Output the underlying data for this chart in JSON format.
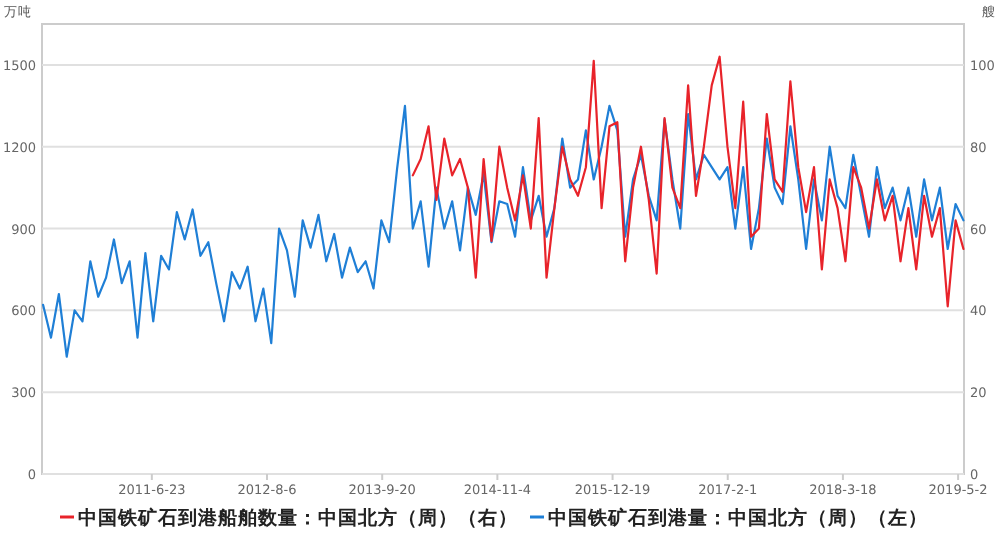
{
  "chart_data": {
    "type": "line",
    "ylabel": "万吨",
    "y2label": "艘",
    "xlim": [
      "2010-05-28",
      "2019-05-23"
    ],
    "xticks": [
      {
        "value": "2011-06-23",
        "label": "2011-6-23"
      },
      {
        "value": "2012-08-06",
        "label": "2012-8-6"
      },
      {
        "value": "2013-09-20",
        "label": "2013-9-20"
      },
      {
        "value": "2014-11-04",
        "label": "2014-11-4"
      },
      {
        "value": "2015-12-19",
        "label": "2015-12-19"
      },
      {
        "value": "2017-02-01",
        "label": "2017-2-1"
      },
      {
        "value": "2018-03-18",
        "label": "2018-3-18"
      },
      {
        "value": "2019-05-02",
        "label": "2019-5-2"
      }
    ],
    "ylim": [
      0,
      1650
    ],
    "yticks": [
      0,
      300,
      600,
      900,
      1200,
      1500
    ],
    "y2lim": [
      0,
      110
    ],
    "y2ticks": [
      0,
      20,
      40,
      60,
      80,
      100
    ],
    "grid": "y",
    "legend": "bottom",
    "marker": "none",
    "line_style": "solid",
    "series": [
      {
        "name": "中国铁矿石到港船舶数量：中国北方（周）（右）",
        "color": "#e8232a",
        "axis": "y2",
        "x": [
          "2014-01-07",
          "2014-02-04",
          "2014-03-04",
          "2014-04-01",
          "2014-04-29",
          "2014-05-27",
          "2014-06-24",
          "2014-07-22",
          "2014-08-19",
          "2014-09-16",
          "2014-10-14",
          "2014-11-11",
          "2014-12-09",
          "2015-01-06",
          "2015-02-03",
          "2015-03-03",
          "2015-03-31",
          "2015-04-28",
          "2015-05-26",
          "2015-06-23",
          "2015-07-21",
          "2015-08-18",
          "2015-09-15",
          "2015-10-13",
          "2015-11-10",
          "2015-12-08",
          "2016-01-05",
          "2016-02-02",
          "2016-03-01",
          "2016-03-29",
          "2016-04-26",
          "2016-05-24",
          "2016-06-21",
          "2016-07-19",
          "2016-08-16",
          "2016-09-13",
          "2016-10-11",
          "2016-11-08",
          "2016-12-06",
          "2017-01-03",
          "2017-01-31",
          "2017-02-28",
          "2017-03-28",
          "2017-04-25",
          "2017-05-23",
          "2017-06-20",
          "2017-07-18",
          "2017-08-15",
          "2017-09-12",
          "2017-10-10",
          "2017-11-07",
          "2017-12-05",
          "2018-01-02",
          "2018-01-30",
          "2018-02-27",
          "2018-03-27",
          "2018-04-24",
          "2018-05-22",
          "2018-06-19",
          "2018-07-17",
          "2018-08-14",
          "2018-09-11",
          "2018-10-09",
          "2018-11-06",
          "2018-12-04",
          "2019-01-01",
          "2019-01-29",
          "2019-02-26",
          "2019-03-26",
          "2019-04-23",
          "2019-05-21"
        ],
        "values": [
          73,
          77,
          85,
          67,
          82,
          73,
          77,
          70,
          48,
          77,
          57,
          80,
          70,
          62,
          73,
          60,
          87,
          48,
          65,
          80,
          72,
          68,
          75,
          101,
          65,
          85,
          86,
          52,
          70,
          80,
          67,
          49,
          87,
          70,
          65,
          95,
          68,
          80,
          95,
          102,
          80,
          65,
          91,
          58,
          60,
          88,
          72,
          69,
          96,
          75,
          64,
          75,
          50,
          72,
          65,
          52,
          75,
          70,
          60,
          72,
          62,
          68,
          52,
          65,
          50,
          68,
          58,
          65,
          41,
          62,
          55
        ]
      },
      {
        "name": "中国铁矿石到港量：中国北方（周）（左）",
        "color": "#1f7fd6",
        "axis": "y",
        "x": [
          "2010-06-01",
          "2010-06-29",
          "2010-07-27",
          "2010-08-24",
          "2010-09-21",
          "2010-10-19",
          "2010-11-16",
          "2010-12-14",
          "2011-01-11",
          "2011-02-08",
          "2011-03-08",
          "2011-04-05",
          "2011-05-03",
          "2011-05-31",
          "2011-06-28",
          "2011-07-26",
          "2011-08-23",
          "2011-09-20",
          "2011-10-18",
          "2011-11-15",
          "2011-12-13",
          "2012-01-10",
          "2012-02-07",
          "2012-03-06",
          "2012-04-03",
          "2012-05-01",
          "2012-05-29",
          "2012-06-26",
          "2012-07-24",
          "2012-08-21",
          "2012-09-18",
          "2012-10-16",
          "2012-11-13",
          "2012-12-11",
          "2013-01-08",
          "2013-02-05",
          "2013-03-05",
          "2013-04-02",
          "2013-04-30",
          "2013-05-28",
          "2013-06-25",
          "2013-07-23",
          "2013-08-20",
          "2013-09-17",
          "2013-10-15",
          "2013-11-12",
          "2013-12-10",
          "2014-01-07",
          "2014-02-04",
          "2014-03-04",
          "2014-04-01",
          "2014-04-29",
          "2014-05-27",
          "2014-06-24",
          "2014-07-22",
          "2014-08-19",
          "2014-09-16",
          "2014-10-14",
          "2014-11-11",
          "2014-12-09",
          "2015-01-06",
          "2015-02-03",
          "2015-03-03",
          "2015-03-31",
          "2015-04-28",
          "2015-05-26",
          "2015-06-23",
          "2015-07-21",
          "2015-08-18",
          "2015-09-15",
          "2015-10-13",
          "2015-11-10",
          "2015-12-08",
          "2016-01-05",
          "2016-02-02",
          "2016-03-01",
          "2016-03-29",
          "2016-04-26",
          "2016-05-24",
          "2016-06-21",
          "2016-07-19",
          "2016-08-16",
          "2016-09-13",
          "2016-10-11",
          "2016-11-08",
          "2016-12-06",
          "2017-01-03",
          "2017-01-31",
          "2017-02-28",
          "2017-03-28",
          "2017-04-25",
          "2017-05-23",
          "2017-06-20",
          "2017-07-18",
          "2017-08-15",
          "2017-09-12",
          "2017-10-10",
          "2017-11-07",
          "2017-12-05",
          "2018-01-02",
          "2018-01-30",
          "2018-02-27",
          "2018-03-27",
          "2018-04-24",
          "2018-05-22",
          "2018-06-19",
          "2018-07-17",
          "2018-08-14",
          "2018-09-11",
          "2018-10-09",
          "2018-11-06",
          "2018-12-04",
          "2019-01-01",
          "2019-01-29",
          "2019-02-26",
          "2019-03-26",
          "2019-04-23",
          "2019-05-21"
        ],
        "values": [
          620,
          500,
          660,
          430,
          600,
          560,
          780,
          650,
          720,
          860,
          700,
          780,
          500,
          810,
          560,
          800,
          750,
          960,
          860,
          970,
          800,
          850,
          700,
          560,
          740,
          680,
          760,
          560,
          680,
          480,
          900,
          820,
          650,
          930,
          830,
          950,
          780,
          880,
          720,
          830,
          740,
          780,
          680,
          930,
          850,
          1120,
          1350,
          900,
          1000,
          760,
          1050,
          900,
          1000,
          820,
          1050,
          950,
          1100,
          850,
          1000,
          990,
          870,
          1125,
          930,
          1020,
          870,
          975,
          1230,
          1050,
          1080,
          1260,
          1080,
          1200,
          1350,
          1260,
          870,
          1080,
          1170,
          1020,
          930,
          1300,
          1080,
          900,
          1320,
          1080,
          1170,
          1125,
          1080,
          1125,
          900,
          1125,
          825,
          975,
          1230,
          1050,
          990,
          1275,
          1080,
          825,
          1080,
          930,
          1200,
          1020,
          975,
          1170,
          1020,
          870,
          1125,
          975,
          1050,
          930,
          1050,
          870,
          1080,
          930,
          1050,
          825,
          990,
          930
        ]
      }
    ]
  }
}
